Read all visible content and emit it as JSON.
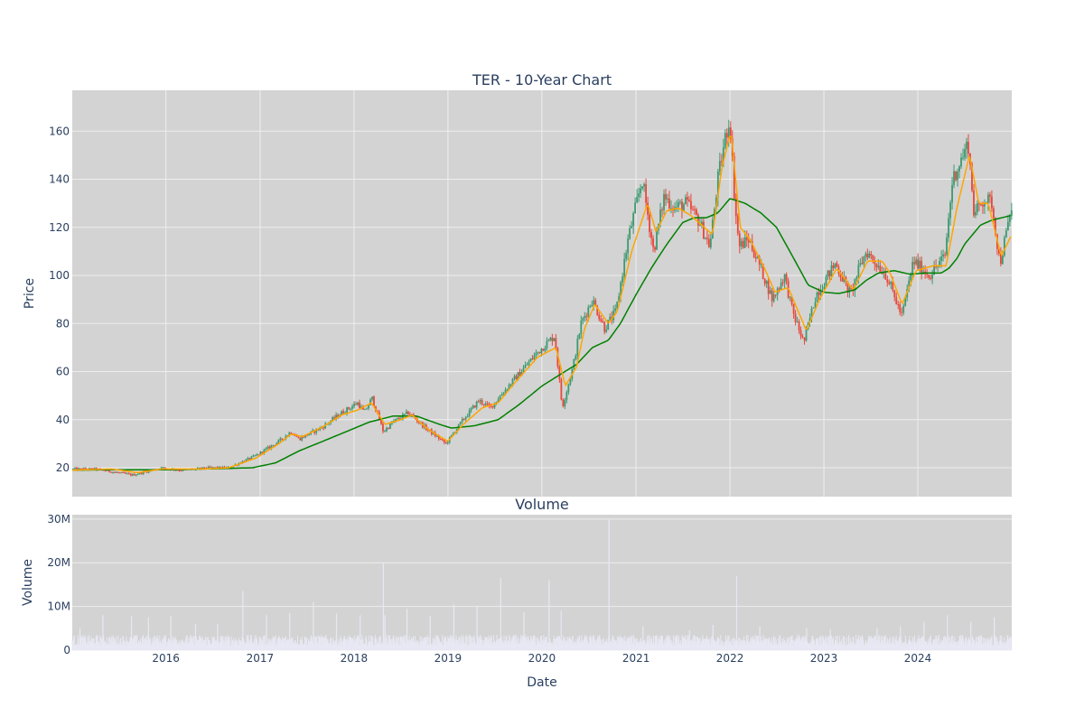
{
  "chart_data": [
    {
      "type": "candlestick",
      "title": "TER - 10-Year Chart",
      "ylabel": "Price",
      "xlabel": "",
      "ylim": [
        8,
        177
      ],
      "x_range": [
        "2015-01-02",
        "2024-12-31"
      ],
      "x_ticks": [],
      "y_ticks": [
        "20",
        "40",
        "60",
        "80",
        "100",
        "120",
        "140",
        "160"
      ],
      "y_tick_values": [
        20,
        40,
        60,
        80,
        100,
        120,
        140,
        160
      ],
      "grid": true,
      "colors": {
        "up": "#3d9970",
        "down": "#e8473a",
        "ma_short": "#ffa500",
        "ma_long": "#008000",
        "plot_bg": "#d3d3d3",
        "grid": "#eeeeee"
      },
      "price_anchors": [
        [
          "2015-01-02",
          19.5
        ],
        [
          "2015-04-01",
          19.5
        ],
        [
          "2015-08-24",
          17
        ],
        [
          "2015-12-15",
          20
        ],
        [
          "2016-03-01",
          19
        ],
        [
          "2016-06-15",
          20
        ],
        [
          "2016-09-01",
          20
        ],
        [
          "2016-12-15",
          25
        ],
        [
          "2017-03-15",
          31
        ],
        [
          "2017-05-01",
          35
        ],
        [
          "2017-06-01",
          32
        ],
        [
          "2017-09-01",
          37
        ],
        [
          "2017-11-15",
          43
        ],
        [
          "2018-01-15",
          47
        ],
        [
          "2018-02-10",
          43
        ],
        [
          "2018-03-12",
          49
        ],
        [
          "2018-04-25",
          35
        ],
        [
          "2018-06-01",
          39
        ],
        [
          "2018-08-01",
          43
        ],
        [
          "2018-10-01",
          37
        ],
        [
          "2018-12-24",
          30
        ],
        [
          "2019-03-01",
          40
        ],
        [
          "2019-05-01",
          48
        ],
        [
          "2019-06-15",
          45
        ],
        [
          "2019-09-01",
          55
        ],
        [
          "2019-12-15",
          68
        ],
        [
          "2020-02-20",
          75
        ],
        [
          "2020-03-20",
          45
        ],
        [
          "2020-05-01",
          62
        ],
        [
          "2020-06-01",
          80
        ],
        [
          "2020-07-15",
          90
        ],
        [
          "2020-09-01",
          78
        ],
        [
          "2020-10-15",
          85
        ],
        [
          "2020-12-01",
          115
        ],
        [
          "2021-01-25",
          140
        ],
        [
          "2021-03-10",
          110
        ],
        [
          "2021-04-20",
          133
        ],
        [
          "2021-06-01",
          128
        ],
        [
          "2021-07-15",
          130
        ],
        [
          "2021-09-01",
          123
        ],
        [
          "2021-10-15",
          112
        ],
        [
          "2021-11-15",
          140
        ],
        [
          "2021-12-15",
          158
        ],
        [
          "2022-01-01",
          165
        ],
        [
          "2022-01-20",
          130
        ],
        [
          "2022-02-05",
          112
        ],
        [
          "2022-03-15",
          115
        ],
        [
          "2022-05-01",
          103
        ],
        [
          "2022-06-15",
          90
        ],
        [
          "2022-08-01",
          100
        ],
        [
          "2022-09-01",
          85
        ],
        [
          "2022-10-15",
          72
        ],
        [
          "2022-12-01",
          92
        ],
        [
          "2023-02-15",
          105
        ],
        [
          "2023-04-15",
          92
        ],
        [
          "2023-05-15",
          102
        ],
        [
          "2023-06-15",
          110
        ],
        [
          "2023-08-01",
          104
        ],
        [
          "2023-09-01",
          100
        ],
        [
          "2023-10-31",
          83
        ],
        [
          "2023-12-15",
          106
        ],
        [
          "2024-02-15",
          100
        ],
        [
          "2024-04-15",
          108
        ],
        [
          "2024-05-15",
          140
        ],
        [
          "2024-07-15",
          155
        ],
        [
          "2024-08-07",
          125
        ],
        [
          "2024-09-15",
          132
        ],
        [
          "2024-10-15",
          130
        ],
        [
          "2024-11-15",
          105
        ],
        [
          "2024-12-31",
          128
        ]
      ],
      "ma_short_anchors": [
        [
          "2015-01-02",
          19
        ],
        [
          "2015-06-01",
          19.5
        ],
        [
          "2015-09-15",
          18
        ],
        [
          "2015-12-15",
          19.5
        ],
        [
          "2016-06-01",
          19.5
        ],
        [
          "2016-09-01",
          20
        ],
        [
          "2016-12-15",
          24
        ],
        [
          "2017-03-15",
          30
        ],
        [
          "2017-05-01",
          34
        ],
        [
          "2017-06-15",
          33
        ],
        [
          "2017-09-01",
          37
        ],
        [
          "2017-11-15",
          42
        ],
        [
          "2018-01-15",
          44
        ],
        [
          "2018-03-10",
          47
        ],
        [
          "2018-05-01",
          38
        ],
        [
          "2018-07-01",
          40
        ],
        [
          "2018-08-15",
          42
        ],
        [
          "2018-10-15",
          36
        ],
        [
          "2019-01-01",
          31
        ],
        [
          "2019-03-01",
          38
        ],
        [
          "2019-05-15",
          45
        ],
        [
          "2019-07-15",
          47
        ],
        [
          "2019-09-15",
          55
        ],
        [
          "2019-12-15",
          66
        ],
        [
          "2020-02-25",
          70
        ],
        [
          "2020-04-01",
          54
        ],
        [
          "2020-05-15",
          62
        ],
        [
          "2020-06-15",
          78
        ],
        [
          "2020-07-25",
          88
        ],
        [
          "2020-09-15",
          80
        ],
        [
          "2020-10-20",
          85
        ],
        [
          "2020-12-15",
          110
        ],
        [
          "2021-02-15",
          130
        ],
        [
          "2021-03-20",
          118
        ],
        [
          "2021-05-01",
          127
        ],
        [
          "2021-06-15",
          128
        ],
        [
          "2021-08-01",
          125
        ],
        [
          "2021-10-25",
          117
        ],
        [
          "2021-12-01",
          145
        ],
        [
          "2022-01-05",
          160
        ],
        [
          "2022-02-10",
          120
        ],
        [
          "2022-03-20",
          115
        ],
        [
          "2022-05-15",
          103
        ],
        [
          "2022-06-25",
          93
        ],
        [
          "2022-08-15",
          95
        ],
        [
          "2022-10-25",
          77
        ],
        [
          "2022-12-15",
          90
        ],
        [
          "2023-02-20",
          103
        ],
        [
          "2023-04-25",
          94
        ],
        [
          "2023-06-20",
          106
        ],
        [
          "2023-08-15",
          106
        ],
        [
          "2023-09-15",
          101
        ],
        [
          "2023-11-01",
          88
        ],
        [
          "2023-12-25",
          102
        ],
        [
          "2024-03-01",
          104
        ],
        [
          "2024-04-20",
          104
        ],
        [
          "2024-06-01",
          128
        ],
        [
          "2024-07-20",
          150
        ],
        [
          "2024-08-25",
          130
        ],
        [
          "2024-10-01",
          130
        ],
        [
          "2024-11-20",
          108
        ],
        [
          "2024-12-31",
          117
        ]
      ],
      "ma_long_anchors": [
        [
          "2015-01-02",
          19
        ],
        [
          "2015-06-01",
          19.2
        ],
        [
          "2016-01-01",
          19.2
        ],
        [
          "2016-06-01",
          19.5
        ],
        [
          "2016-12-01",
          20
        ],
        [
          "2017-03-01",
          22
        ],
        [
          "2017-06-01",
          27
        ],
        [
          "2017-09-01",
          31
        ],
        [
          "2017-12-01",
          35
        ],
        [
          "2018-03-01",
          39
        ],
        [
          "2018-06-01",
          41.5
        ],
        [
          "2018-09-01",
          41.5
        ],
        [
          "2018-12-01",
          38
        ],
        [
          "2019-01-15",
          36.5
        ],
        [
          "2019-04-15",
          37.5
        ],
        [
          "2019-07-15",
          40
        ],
        [
          "2019-10-01",
          46
        ],
        [
          "2020-01-01",
          54
        ],
        [
          "2020-03-15",
          59
        ],
        [
          "2020-05-15",
          63
        ],
        [
          "2020-07-15",
          70
        ],
        [
          "2020-09-15",
          73
        ],
        [
          "2020-11-01",
          80
        ],
        [
          "2021-01-01",
          92
        ],
        [
          "2021-03-01",
          103
        ],
        [
          "2021-05-01",
          113
        ],
        [
          "2021-07-01",
          122
        ],
        [
          "2021-08-15",
          124
        ],
        [
          "2021-10-01",
          124
        ],
        [
          "2021-11-15",
          126
        ],
        [
          "2022-01-01",
          132
        ],
        [
          "2022-03-01",
          130
        ],
        [
          "2022-05-01",
          126
        ],
        [
          "2022-07-01",
          120
        ],
        [
          "2022-09-01",
          108
        ],
        [
          "2022-11-01",
          96
        ],
        [
          "2023-01-01",
          93
        ],
        [
          "2023-03-01",
          92.5
        ],
        [
          "2023-05-01",
          94
        ],
        [
          "2023-06-15",
          98
        ],
        [
          "2023-08-01",
          101
        ],
        [
          "2023-10-01",
          102
        ],
        [
          "2023-12-01",
          100.5
        ],
        [
          "2024-02-01",
          101
        ],
        [
          "2024-04-01",
          101
        ],
        [
          "2024-05-01",
          103
        ],
        [
          "2024-06-01",
          107
        ],
        [
          "2024-07-01",
          113
        ],
        [
          "2024-09-01",
          121
        ],
        [
          "2024-10-15",
          123
        ],
        [
          "2024-12-31",
          125
        ]
      ]
    },
    {
      "type": "bar",
      "title": "Volume",
      "ylabel": "Volume",
      "xlabel": "Date",
      "ylim": [
        0,
        31000000
      ],
      "x_range": [
        "2015-01-02",
        "2024-12-31"
      ],
      "x_ticks": [
        "2016",
        "2017",
        "2018",
        "2019",
        "2020",
        "2021",
        "2022",
        "2023",
        "2024"
      ],
      "x_tick_dates": [
        "2016-01-01",
        "2017-01-01",
        "2018-01-01",
        "2019-01-01",
        "2020-01-01",
        "2021-01-01",
        "2022-01-01",
        "2023-01-01",
        "2024-01-01"
      ],
      "y_ticks": [
        "0",
        "10M",
        "20M",
        "30M"
      ],
      "y_tick_values": [
        0,
        10000000,
        20000000,
        30000000
      ],
      "grid": true,
      "colors": {
        "bar": "#e8e8f4",
        "plot_bg": "#d3d3d3",
        "grid": "#eeeeee"
      },
      "volume_base": 2200000,
      "volume_spikes": [
        [
          "2015-02-01",
          5000000
        ],
        [
          "2015-05-01",
          8000000
        ],
        [
          "2015-08-20",
          7800000
        ],
        [
          "2015-10-25",
          7500000
        ],
        [
          "2016-01-20",
          7800000
        ],
        [
          "2016-04-25",
          6000000
        ],
        [
          "2016-07-20",
          6000000
        ],
        [
          "2016-10-26",
          13500000
        ],
        [
          "2017-01-26",
          8000000
        ],
        [
          "2017-04-26",
          8500000
        ],
        [
          "2017-07-27",
          11000000
        ],
        [
          "2017-10-25",
          8400000
        ],
        [
          "2018-01-25",
          8000000
        ],
        [
          "2018-04-25",
          20000000
        ],
        [
          "2018-05-01",
          8000000
        ],
        [
          "2018-07-26",
          9500000
        ],
        [
          "2018-10-24",
          7800000
        ],
        [
          "2019-01-24",
          10500000
        ],
        [
          "2019-04-24",
          10200000
        ],
        [
          "2019-07-25",
          16500000
        ],
        [
          "2019-10-23",
          8700000
        ],
        [
          "2020-01-29",
          16000000
        ],
        [
          "2020-03-16",
          9000000
        ],
        [
          "2020-09-18",
          30000000
        ],
        [
          "2021-01-28",
          5500000
        ],
        [
          "2021-07-28",
          4500000
        ],
        [
          "2021-10-27",
          5800000
        ],
        [
          "2022-01-27",
          17000000
        ],
        [
          "2022-04-27",
          5500000
        ],
        [
          "2022-10-26",
          5000000
        ],
        [
          "2023-01-26",
          4800000
        ],
        [
          "2023-07-27",
          5000000
        ],
        [
          "2023-10-25",
          5500000
        ],
        [
          "2024-01-25",
          6500000
        ],
        [
          "2024-04-25",
          8000000
        ],
        [
          "2024-07-25",
          6500000
        ],
        [
          "2024-10-24",
          7500000
        ]
      ]
    }
  ]
}
